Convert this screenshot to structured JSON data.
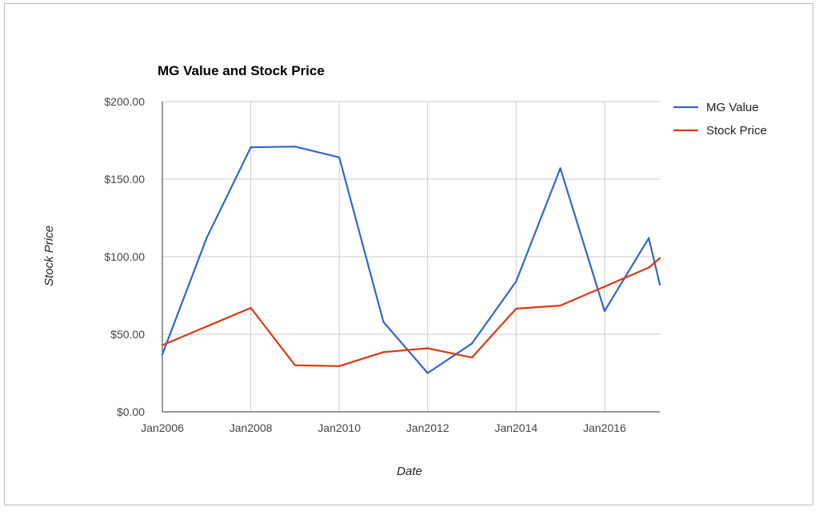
{
  "chart_data": {
    "type": "line",
    "title": "MG Value and Stock Price",
    "xlabel": "Date",
    "ylabel": "Stock Price",
    "x_tick_labels": [
      "Jan2006",
      "Jan2008",
      "Jan2010",
      "Jan2012",
      "Jan2014",
      "Jan2016"
    ],
    "y_tick_labels": [
      "$0.00",
      "$50.00",
      "$100.00",
      "$150.00",
      "$200.00"
    ],
    "xlim": [
      "2006-01",
      "2017-04"
    ],
    "ylim": [
      0,
      200
    ],
    "grid": true,
    "legend_position": "right",
    "x": [
      "2006-01",
      "2007-01",
      "2008-01",
      "2009-01",
      "2010-01",
      "2011-01",
      "2012-01",
      "2013-01",
      "2014-01",
      "2015-01",
      "2016-01",
      "2017-01",
      "2017-04"
    ],
    "series": [
      {
        "name": "MG Value",
        "color": "#3366cc",
        "values": [
          37,
          112,
          170.5,
          171,
          164,
          58,
          25,
          44,
          84,
          157,
          65,
          112,
          82
        ]
      },
      {
        "name": "Stock Price",
        "color": "#dc3912",
        "values": [
          43,
          55,
          67,
          30,
          29.5,
          38.5,
          41,
          35,
          66.5,
          68.5,
          null,
          93,
          99
        ]
      }
    ]
  }
}
